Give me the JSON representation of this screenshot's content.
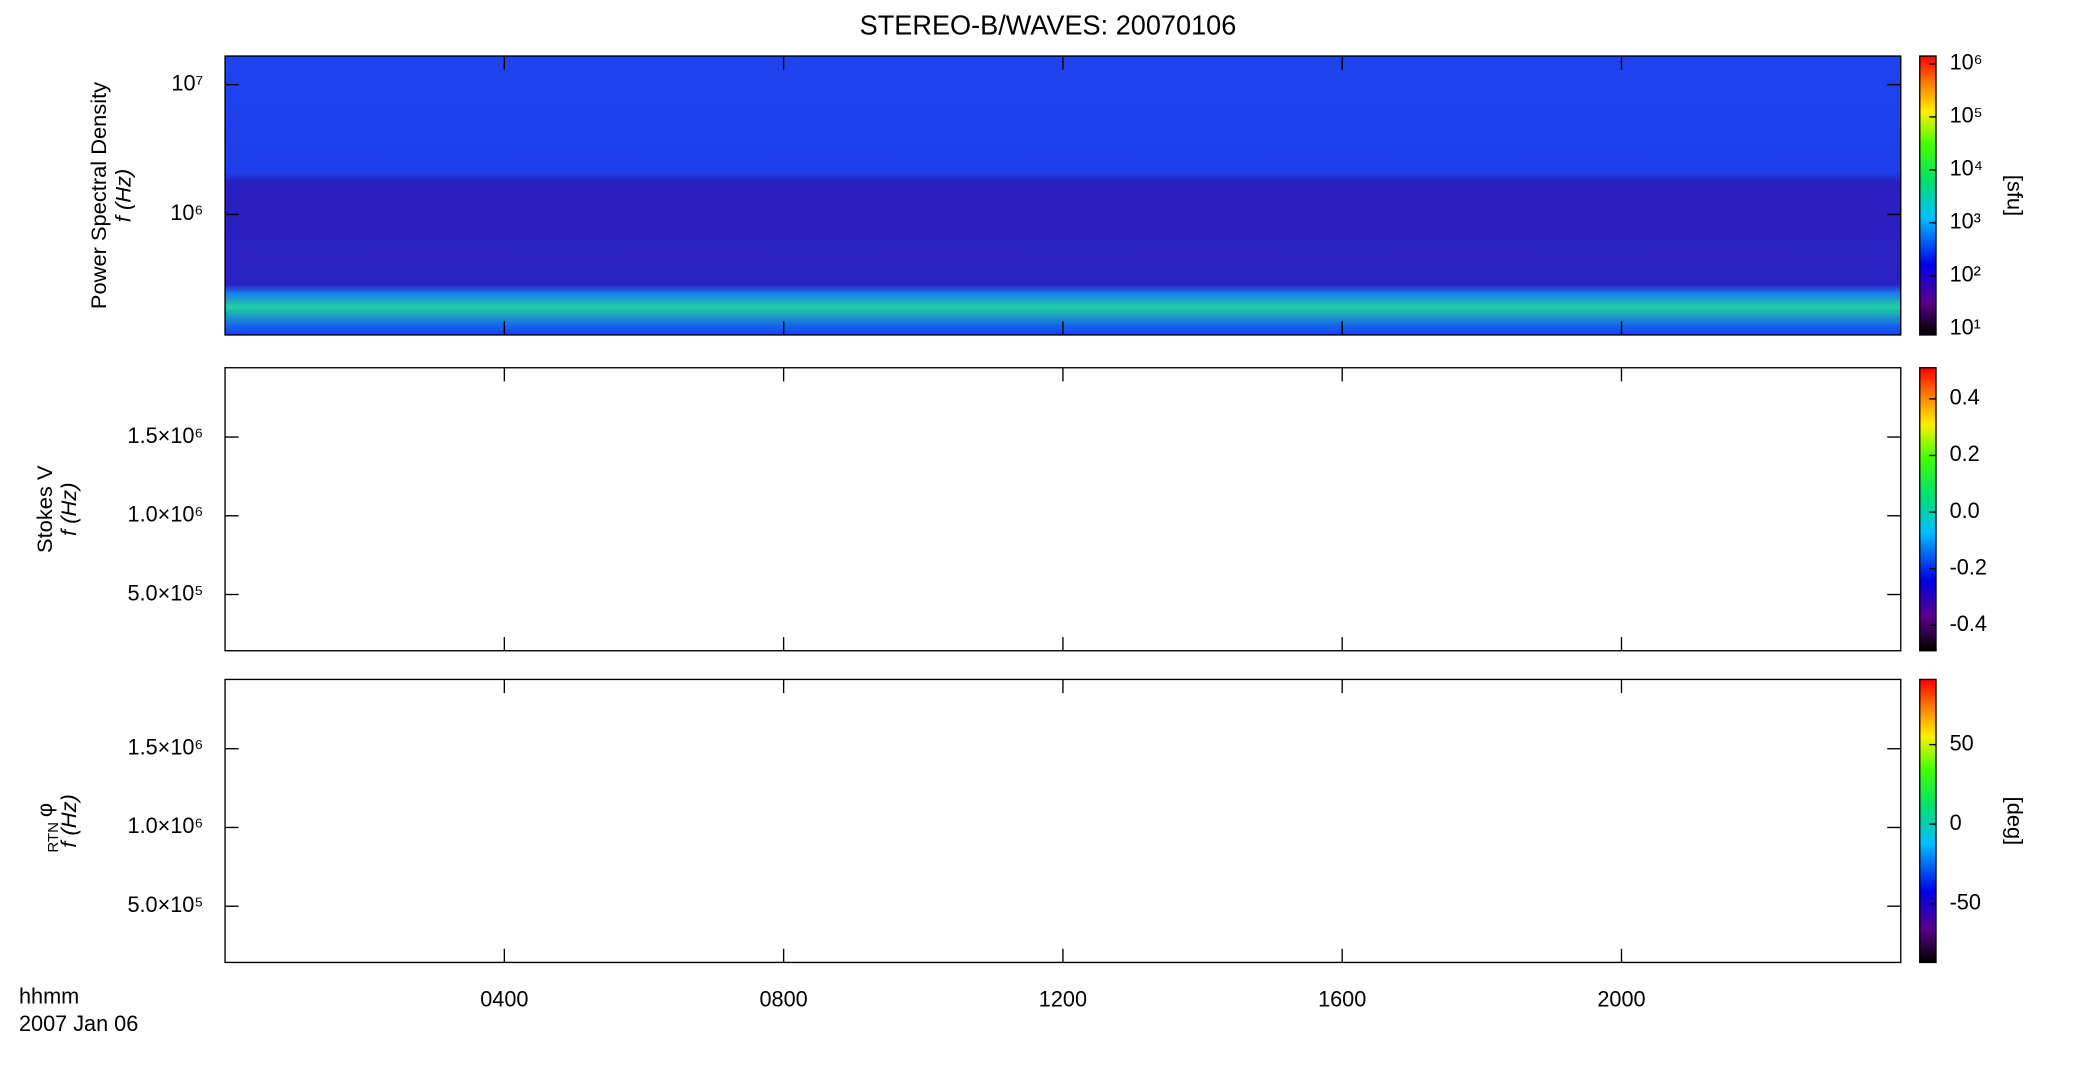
{
  "chart_data": [
    {
      "type": "spectrogram",
      "title": "STEREO-B/WAVES: 20070106",
      "ylabel": "Power Spectral Density",
      "ylabel2": "f (Hz)",
      "ylog": true,
      "ylim": [
        118000,
        16600000
      ],
      "yticks": [
        {
          "value": 1000000,
          "label": "10⁶"
        },
        {
          "value": 10000000,
          "label": "10⁷"
        }
      ],
      "xlim": [
        0,
        24
      ],
      "xticks": [
        4,
        8,
        12,
        16,
        20
      ],
      "colorbar": {
        "log": true,
        "lim": [
          7.6,
          1410000
        ],
        "label": "[sfu]",
        "ticks": [
          {
            "value": 10,
            "label": "10¹"
          },
          {
            "value": 100,
            "label": "10²"
          },
          {
            "value": 1000,
            "label": "10³"
          },
          {
            "value": 10000,
            "label": "10⁴"
          },
          {
            "value": 100000,
            "label": "10⁵"
          },
          {
            "value": 1000000,
            "label": "10⁶"
          }
        ]
      }
    },
    {
      "type": "spectrogram",
      "ylabel": "Stokes V",
      "ylabel2": "f (Hz)",
      "ylog": false,
      "ylim": [
        143000,
        1940000
      ],
      "yticks": [
        {
          "value": 500000,
          "label": "5.0×10⁵"
        },
        {
          "value": 1000000,
          "label": "1.0×10⁶"
        },
        {
          "value": 1500000,
          "label": "1.5×10⁶"
        }
      ],
      "xlim": [
        0,
        24
      ],
      "xticks": [
        4,
        8,
        12,
        16,
        20
      ],
      "colorbar": {
        "log": false,
        "lim": [
          -0.49,
          0.51
        ],
        "ticks": [
          {
            "value": -0.4,
            "label": "-0.4"
          },
          {
            "value": -0.2,
            "label": "-0.2"
          },
          {
            "value": 0,
            "label": "0.0"
          },
          {
            "value": 0.2,
            "label": "0.2"
          },
          {
            "value": 0.4,
            "label": "0.4"
          }
        ]
      }
    },
    {
      "type": "spectrogram",
      "ylabel": "φ",
      "ylabel_sub": "RTN",
      "ylabel2": "f (Hz)",
      "ylog": false,
      "ylim": [
        143000,
        1940000
      ],
      "yticks": [
        {
          "value": 500000,
          "label": "5.0×10⁵"
        },
        {
          "value": 1000000,
          "label": "1.0×10⁶"
        },
        {
          "value": 1500000,
          "label": "1.5×10⁶"
        }
      ],
      "xlim": [
        0,
        24
      ],
      "xticks": [
        {
          "value": 4,
          "label": "0400"
        },
        {
          "value": 8,
          "label": "0800"
        },
        {
          "value": 12,
          "label": "1200"
        },
        {
          "value": 16,
          "label": "1600"
        },
        {
          "value": 20,
          "label": "2000"
        }
      ],
      "xlabel": "hhmm",
      "xlabel2": "2007 Jan 06",
      "colorbar": {
        "log": false,
        "lim": [
          -87,
          91
        ],
        "label": "[deg]",
        "ticks": [
          -50,
          0,
          50
        ]
      }
    }
  ]
}
